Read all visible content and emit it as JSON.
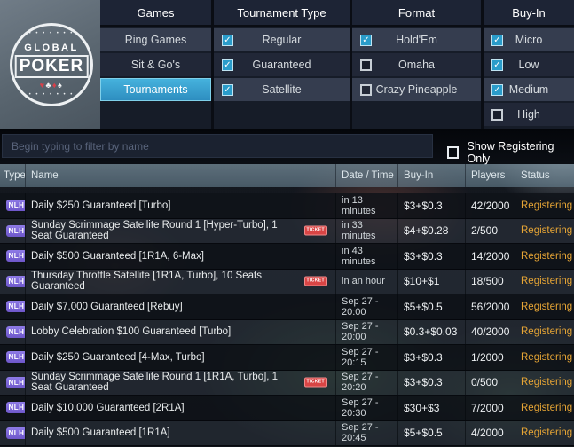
{
  "logo": {
    "top_text": "GLOBAL",
    "main_text": "POKER",
    "suits": [
      {
        "glyph": "♥",
        "color": "red"
      },
      {
        "glyph": "♣",
        "color": "white"
      },
      {
        "glyph": "♦",
        "color": "red"
      },
      {
        "glyph": "♠",
        "color": "white"
      }
    ]
  },
  "filters": {
    "games": {
      "header": "Games",
      "items": [
        {
          "label": "Ring Games",
          "selected": false
        },
        {
          "label": "Sit & Go's",
          "selected": false
        },
        {
          "label": "Tournaments",
          "selected": true
        }
      ]
    },
    "tournament_type": {
      "header": "Tournament Type",
      "items": [
        {
          "label": "Regular",
          "checked": true
        },
        {
          "label": "Guaranteed",
          "checked": true
        },
        {
          "label": "Satellite",
          "checked": true
        }
      ]
    },
    "format": {
      "header": "Format",
      "items": [
        {
          "label": "Hold'Em",
          "checked": true
        },
        {
          "label": "Omaha",
          "checked": false
        },
        {
          "label": "Crazy Pineapple",
          "checked": false
        }
      ]
    },
    "buy_in": {
      "header": "Buy-In",
      "items": [
        {
          "label": "Micro",
          "checked": true
        },
        {
          "label": "Low",
          "checked": true
        },
        {
          "label": "Medium",
          "checked": true
        },
        {
          "label": "High",
          "checked": false
        }
      ]
    }
  },
  "filter_bar": {
    "search_placeholder": "Begin typing to filter by name",
    "search_value": "",
    "show_registering_label": "Show Registering Only",
    "show_registering_checked": false
  },
  "table": {
    "headers": [
      "Type",
      "Name",
      "Date / Time",
      "Buy-In",
      "Players",
      "Status"
    ],
    "ticket_badge_label": "TICKET",
    "rows": [
      {
        "type": "NLH",
        "name": "Daily $250 Guaranteed [Turbo]",
        "ticket": false,
        "datetime": "in 13 minutes",
        "buyin": "$3+$0.3",
        "players": "42/2000",
        "status": "Registering"
      },
      {
        "type": "NLH",
        "name": "Sunday Scrimmage Satellite Round 1 [Hyper-Turbo], 1 Seat Guaranteed",
        "ticket": true,
        "datetime": "in 33 minutes",
        "buyin": "$4+$0.28",
        "players": "2/500",
        "status": "Registering"
      },
      {
        "type": "NLH",
        "name": "Daily $500 Guaranteed [1R1A, 6-Max]",
        "ticket": false,
        "datetime": "in 43 minutes",
        "buyin": "$3+$0.3",
        "players": "14/2000",
        "status": "Registering"
      },
      {
        "type": "NLH",
        "name": "Thursday Throttle Satellite [1R1A, Turbo], 10 Seats Guaranteed",
        "ticket": true,
        "datetime": "in an hour",
        "buyin": "$10+$1",
        "players": "18/500",
        "status": "Registering"
      },
      {
        "type": "NLH",
        "name": "Daily $7,000 Guaranteed [Rebuy]",
        "ticket": false,
        "datetime": "Sep 27 - 20:00",
        "buyin": "$5+$0.5",
        "players": "56/2000",
        "status": "Registering"
      },
      {
        "type": "NLH",
        "name": "Lobby Celebration $100 Guaranteed [Turbo]",
        "ticket": false,
        "datetime": "Sep 27 - 20:00",
        "buyin": "$0.3+$0.03",
        "players": "40/2000",
        "status": "Registering"
      },
      {
        "type": "NLH",
        "name": "Daily $250 Guaranteed [4-Max, Turbo]",
        "ticket": false,
        "datetime": "Sep 27 - 20:15",
        "buyin": "$3+$0.3",
        "players": "1/2000",
        "status": "Registering"
      },
      {
        "type": "NLH",
        "name": "Sunday Scrimmage Satellite Round 1 [1R1A, Turbo], 1 Seat Guaranteed",
        "ticket": true,
        "datetime": "Sep 27 - 20:20",
        "buyin": "$3+$0.3",
        "players": "0/500",
        "status": "Registering"
      },
      {
        "type": "NLH",
        "name": "Daily $10,000 Guaranteed [2R1A]",
        "ticket": false,
        "datetime": "Sep 27 - 20:30",
        "buyin": "$30+$3",
        "players": "7/2000",
        "status": "Registering"
      },
      {
        "type": "NLH",
        "name": "Daily $500 Guaranteed [1R1A]",
        "ticket": false,
        "datetime": "Sep 27 - 20:45",
        "buyin": "$5+$0.5",
        "players": "4/2000",
        "status": "Registering"
      }
    ]
  },
  "colors": {
    "accent_blue": "#35a0d0",
    "checkbox_cyan": "#2a9cca",
    "status_orange": "#e5a435",
    "badge_purple": "#7b67d9",
    "ticket_red": "#d94545"
  }
}
